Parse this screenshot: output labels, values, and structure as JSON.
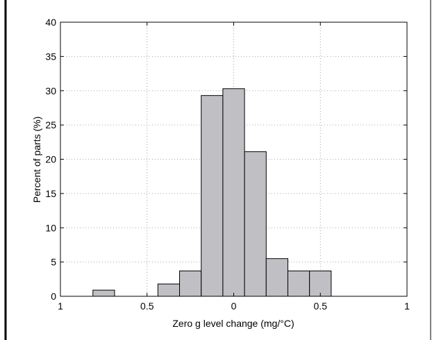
{
  "chart_data": {
    "type": "bar",
    "xlabel": "Zero  g level change (mg/°C)",
    "ylabel": "Percent of parts (%)",
    "xlim": [
      -1,
      1
    ],
    "ylim": [
      0,
      40
    ],
    "bin_width": 0.125,
    "bin_centers": [
      -0.75,
      -0.625,
      -0.5,
      -0.375,
      -0.25,
      -0.125,
      0,
      0.125,
      0.25,
      0.375,
      0.5
    ],
    "values": [
      0.9,
      0,
      0,
      1.8,
      3.7,
      29.3,
      30.3,
      21.1,
      5.5,
      3.7,
      3.7
    ],
    "xticks": [
      -1,
      -0.5,
      0,
      0.5,
      1
    ],
    "xtick_labels": [
      "1",
      "0.5",
      "0",
      "0.5",
      "1"
    ],
    "yticks": [
      0,
      5,
      10,
      15,
      20,
      25,
      30,
      35,
      40
    ],
    "ytick_labels": [
      "0",
      "5",
      "10",
      "15",
      "20",
      "25",
      "30",
      "35",
      "40"
    ],
    "grid": true,
    "bar_color": "#c0c0c4",
    "edge_color": "#000000"
  }
}
